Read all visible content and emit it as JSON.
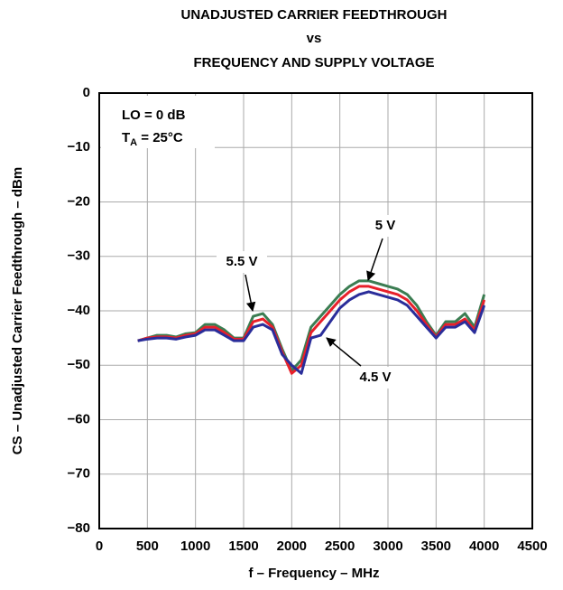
{
  "chart_data": {
    "type": "line",
    "title": [
      "UNADJUSTED CARRIER FEEDTHROUGH",
      "vs",
      "FREQUENCY AND SUPPLY VOLTAGE"
    ],
    "x_label": "f – Frequency – MHz",
    "y_label": "CS – Unadjusted Carrier Feedthrough – dBm",
    "annotations": [
      {
        "text": "LO = 0 dB"
      },
      {
        "symbol": "T",
        "subscript": "A",
        "text": " = 25°C"
      }
    ],
    "x": [
      400,
      500,
      600,
      700,
      800,
      900,
      1000,
      1100,
      1200,
      1300,
      1400,
      1500,
      1600,
      1700,
      1800,
      1900,
      2000,
      2100,
      2200,
      2300,
      2400,
      2500,
      2600,
      2700,
      2800,
      2900,
      3000,
      3100,
      3200,
      3300,
      3400,
      3500,
      3600,
      3700,
      3800,
      3900,
      4000
    ],
    "series": [
      {
        "name": "5.5 V",
        "color": "#3b7d52",
        "values": [
          -45.5,
          -45,
          -44.5,
          -44.5,
          -44.8,
          -44.2,
          -44,
          -42.5,
          -42.5,
          -43.5,
          -45,
          -45,
          -41,
          -40.5,
          -42.5,
          -47,
          -51,
          -49,
          -43,
          -41,
          -39,
          -37,
          -35.5,
          -34.5,
          -34.5,
          -35,
          -35.5,
          -36,
          -37,
          -39,
          -42,
          -44.5,
          -42,
          -42,
          -40.5,
          -43,
          -37
        ]
      },
      {
        "name": "5 V",
        "color": "#e8202a",
        "values": [
          -45.5,
          -45,
          -44.8,
          -44.8,
          -45,
          -44.5,
          -44.2,
          -43,
          -43,
          -44,
          -45.2,
          -45.2,
          -42,
          -41.5,
          -43,
          -47.5,
          -51.5,
          -50,
          -44,
          -42,
          -40,
          -38,
          -36.5,
          -35.5,
          -35.5,
          -36,
          -36.5,
          -37,
          -38,
          -40,
          -42.5,
          -44.8,
          -42.5,
          -42.5,
          -41.5,
          -43.5,
          -38
        ]
      },
      {
        "name": "4.5 V",
        "color": "#2a2d9a",
        "values": [
          -45.5,
          -45.2,
          -45,
          -45,
          -45.2,
          -44.8,
          -44.5,
          -43.5,
          -43.5,
          -44.5,
          -45.5,
          -45.5,
          -43,
          -42.5,
          -43.5,
          -48,
          -50,
          -51.5,
          -45,
          -44.5,
          -42,
          -39.5,
          -38,
          -37,
          -36.5,
          -37,
          -37.5,
          -38,
          -39,
          -41,
          -43,
          -45,
          -43,
          -43,
          -42,
          -44,
          -39
        ]
      }
    ],
    "xlim": [
      0,
      4500
    ],
    "xticks": [
      0,
      500,
      1000,
      1500,
      2000,
      2500,
      3000,
      3500,
      4000,
      4500
    ],
    "ylim": [
      -80,
      0
    ],
    "yticks": [
      {
        "value": -80,
        "label": "−80"
      },
      {
        "value": -70,
        "label": "−70"
      },
      {
        "value": -60,
        "label": "−60"
      },
      {
        "value": -50,
        "label": "−50"
      },
      {
        "value": -40,
        "label": "−40"
      },
      {
        "value": -30,
        "label": "−30"
      },
      {
        "value": -20,
        "label": "−20"
      },
      {
        "value": -10,
        "label": "−10"
      },
      0
    ],
    "grid": true
  }
}
